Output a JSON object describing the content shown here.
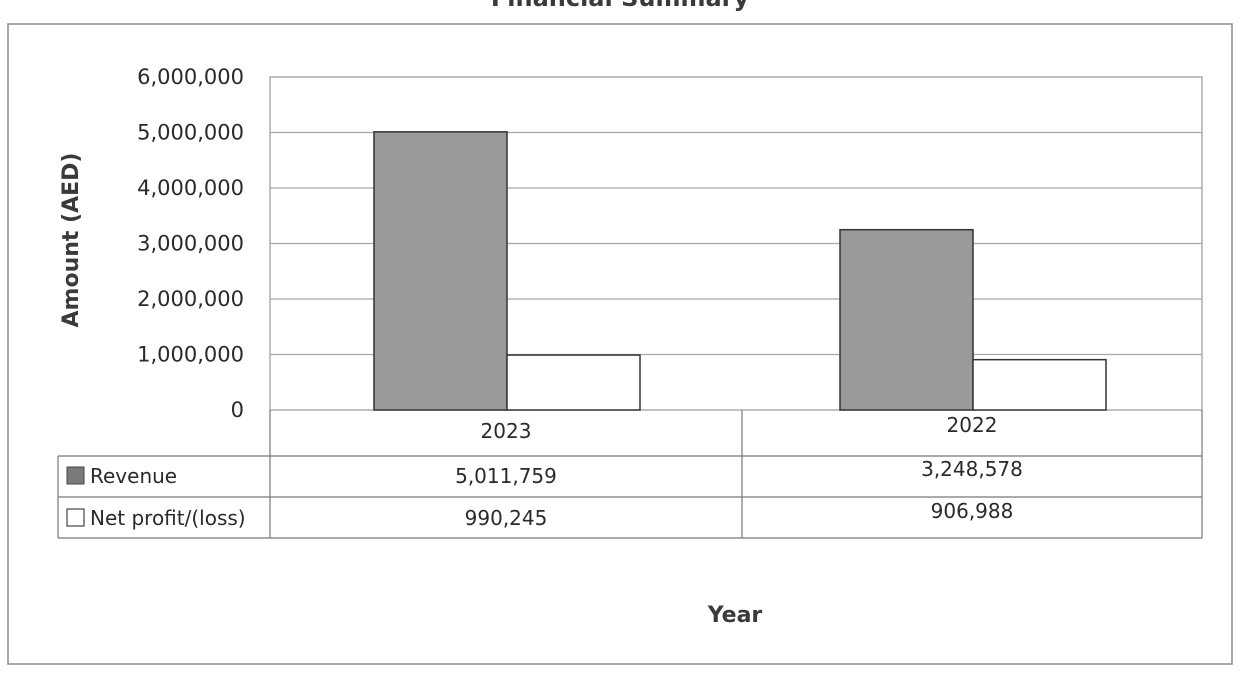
{
  "chart_data": {
    "type": "bar",
    "title": "Financial Summary",
    "xlabel": "Year",
    "ylabel": "Amount (AED)",
    "categories": [
      "2023",
      "2022"
    ],
    "series": [
      {
        "name": "Revenue",
        "values": [
          5011759,
          3248578
        ],
        "display_values": [
          "5,011,759",
          "3,248,578"
        ],
        "color": "#9a9a9a"
      },
      {
        "name": "Net profit/(loss)",
        "values": [
          990245,
          906988
        ],
        "display_values": [
          "990,245",
          "906,988"
        ],
        "color": "#ffffff"
      }
    ],
    "ylim": [
      0,
      6000000
    ],
    "yticks": [
      0,
      1000000,
      2000000,
      3000000,
      4000000,
      5000000,
      6000000
    ],
    "ytick_labels": [
      "0",
      "1,000,000",
      "2,000,000",
      "3,000,000",
      "4,000,000",
      "5,000,000",
      "6,000,000"
    ],
    "grid": true,
    "legend": "data-table"
  }
}
